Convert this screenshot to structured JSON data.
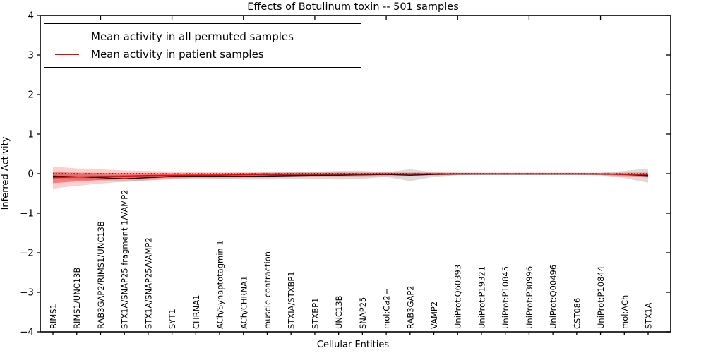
{
  "figure": {
    "title": "Effects of Botulinum toxin -- 501 samples",
    "xlabel": "Cellular Entities",
    "ylabel": "Inferred Activity"
  },
  "legend": {
    "items": [
      {
        "label": "Mean activity in all permuted samples",
        "color": "#000000"
      },
      {
        "label": "Mean activity in patient samples",
        "color": "#ff0000"
      }
    ]
  },
  "chart_data": {
    "type": "line",
    "title": "Effects of Botulinum toxin -- 501 samples",
    "xlabel": "Cellular Entities",
    "ylabel": "Inferred Activity",
    "ylim": [
      -4,
      4
    ],
    "yticks": {
      "values": [
        4,
        3,
        2,
        1,
        0,
        -1,
        -2,
        -3,
        -4
      ],
      "labels": [
        "4",
        "3",
        "2",
        "1",
        "0",
        "−1",
        "−2",
        "−3",
        "−4"
      ]
    },
    "grid": false,
    "legend_position": "upper left",
    "categories": [
      "RIMS1",
      "RIMS1/UNC13B",
      "RAB3GAP2/RIMS1/UNC13B",
      "STX1A/SNAP25 fragment 1/VAMP2",
      "STX1A/SNAP25/VAMP2",
      "SYT1",
      "CHRNA1",
      "ACh/Synaptotagmin 1",
      "ACh/CHRNA1",
      "muscle contraction",
      "STXIA/STXBP1",
      "STXBP1",
      "UNC13B",
      "SNAP25",
      "mol:Ca2+",
      "RAB3GAP2",
      "VAMP2",
      "UniProt:Q60393",
      "UniProt:P19321",
      "UniProt:P10845",
      "UniProt:P30996",
      "UniProt:Q00496",
      "CST086",
      "UniProt:P10844",
      "mol:ACh",
      "STX1A"
    ],
    "series": [
      {
        "name": "Mean activity in all permuted samples",
        "color": "#000000",
        "style": "solid",
        "width": 1.3,
        "values": [
          -0.06,
          -0.08,
          -0.1,
          -0.13,
          -0.1,
          -0.07,
          -0.06,
          -0.06,
          -0.07,
          -0.06,
          -0.05,
          -0.04,
          -0.04,
          -0.03,
          -0.02,
          -0.04,
          -0.02,
          -0.01,
          -0.01,
          -0.01,
          -0.01,
          -0.01,
          -0.01,
          -0.01,
          -0.02,
          -0.05
        ]
      },
      {
        "name": "Mean activity in patient samples",
        "color": "#ff0000",
        "style": "solid",
        "width": 1.5,
        "values": [
          -0.1,
          -0.085,
          -0.07,
          -0.06,
          -0.05,
          -0.045,
          -0.04,
          -0.035,
          -0.03,
          -0.025,
          -0.02,
          -0.02,
          -0.015,
          -0.015,
          -0.01,
          -0.01,
          -0.01,
          -0.005,
          -0.005,
          -0.005,
          -0.005,
          -0.005,
          -0.005,
          -0.01,
          -0.02,
          -0.03
        ]
      },
      {
        "name": "zero reference",
        "color": "#000000",
        "style": "dotted",
        "width": 1.3,
        "values": [
          0,
          0,
          0,
          0,
          0,
          0,
          0,
          0,
          0,
          0,
          0,
          0,
          0,
          0,
          0,
          0,
          0,
          0,
          0,
          0,
          0,
          0,
          0,
          0,
          0,
          0
        ]
      }
    ],
    "bands": [
      {
        "name": "permuted samples range",
        "color": "#999999",
        "opacity": 0.35,
        "center_series": 0,
        "half_widths": [
          0.08,
          0.075,
          0.07,
          0.08,
          0.07,
          0.06,
          0.05,
          0.06,
          0.08,
          0.09,
          0.08,
          0.09,
          0.11,
          0.1,
          0.06,
          0.15,
          0.06,
          0.03,
          0.02,
          0.02,
          0.02,
          0.02,
          0.02,
          0.03,
          0.09,
          0.18
        ]
      },
      {
        "name": "patient samples range outer",
        "color": "#ff2222",
        "opacity": 0.22,
        "center_series": 1,
        "half_widths": [
          0.28,
          0.22,
          0.18,
          0.14,
          0.12,
          0.1,
          0.09,
          0.085,
          0.08,
          0.075,
          0.07,
          0.065,
          0.06,
          0.055,
          0.05,
          0.045,
          0.04,
          0.035,
          0.03,
          0.03,
          0.03,
          0.03,
          0.03,
          0.035,
          0.05,
          0.07
        ]
      },
      {
        "name": "patient samples range inner",
        "color": "#ee1111",
        "opacity": 0.42,
        "center_series": 1,
        "half_widths": [
          0.14,
          0.11,
          0.09,
          0.075,
          0.065,
          0.055,
          0.05,
          0.045,
          0.045,
          0.04,
          0.04,
          0.035,
          0.035,
          0.03,
          0.03,
          0.025,
          0.025,
          0.02,
          0.02,
          0.02,
          0.02,
          0.02,
          0.02,
          0.02,
          0.03,
          0.04
        ]
      }
    ]
  }
}
